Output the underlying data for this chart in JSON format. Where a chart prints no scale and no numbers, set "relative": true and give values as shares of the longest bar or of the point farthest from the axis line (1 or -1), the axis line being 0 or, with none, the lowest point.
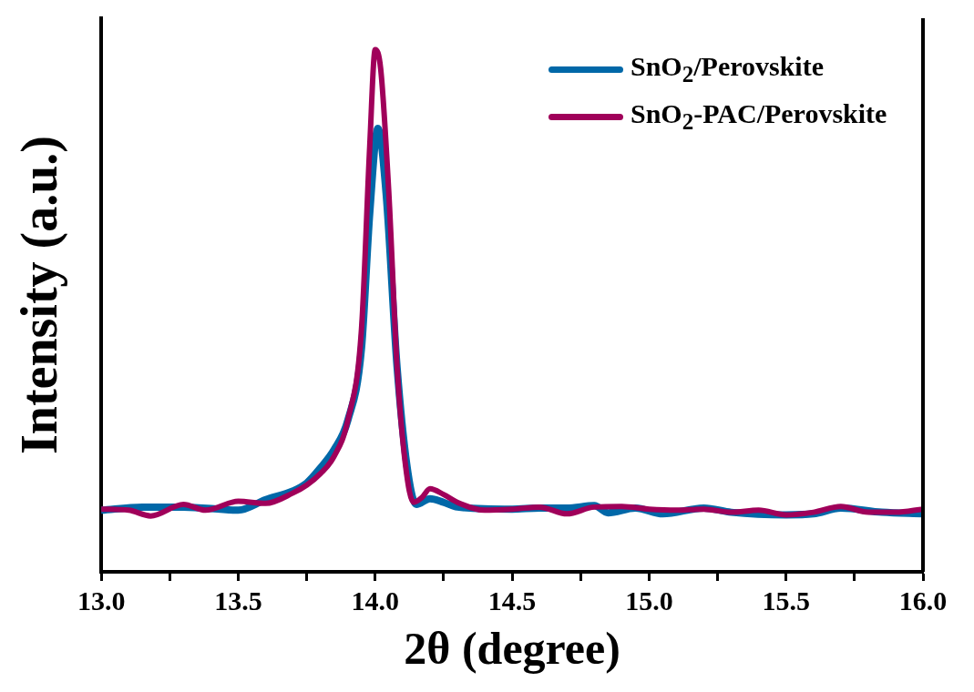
{
  "chart_data": {
    "type": "line",
    "relative": true,
    "xlabel": "2θ (degree)",
    "ylabel": "Intensity (a.u.)",
    "xlim": [
      13,
      16
    ],
    "xticks": [
      {
        "value": 13,
        "label": "13.0"
      },
      {
        "value": 13.25,
        "label": null
      },
      {
        "value": 13.5,
        "label": "13.5"
      },
      {
        "value": 13.75,
        "label": null
      },
      {
        "value": 14,
        "label": "14.0"
      },
      {
        "value": 14.25,
        "label": null
      },
      {
        "value": 14.5,
        "label": "14.5"
      },
      {
        "value": 14.75,
        "label": null
      },
      {
        "value": 15,
        "label": "15.0"
      },
      {
        "value": 15.25,
        "label": null
      },
      {
        "value": 15.5,
        "label": "15.5"
      },
      {
        "value": 15.75,
        "label": null
      },
      {
        "value": 16,
        "label": "16.0"
      }
    ],
    "tick_labels": "x",
    "grid": false,
    "legend": "top right",
    "marker": "none",
    "line_style": "solid",
    "series": [
      {
        "name": "SnO$_{2}$/Perovskite",
        "color": "#0068a8",
        "x": [
          13.0,
          13.15,
          13.3,
          13.5,
          13.6,
          13.7,
          13.75,
          13.8,
          13.85,
          13.9,
          13.95,
          13.98,
          14.01,
          14.04,
          14.08,
          14.12,
          14.15,
          14.2,
          14.25,
          14.3,
          14.5,
          14.6,
          14.7,
          14.8,
          14.85,
          14.95,
          15.05,
          15.2,
          15.3,
          15.5,
          15.6,
          15.7,
          15.85,
          16.0
        ],
        "values": [
          0.118,
          0.124,
          0.124,
          0.118,
          0.138,
          0.155,
          0.17,
          0.199,
          0.234,
          0.29,
          0.428,
          0.686,
          0.849,
          0.723,
          0.391,
          0.188,
          0.129,
          0.14,
          0.133,
          0.124,
          0.12,
          0.122,
          0.122,
          0.127,
          0.113,
          0.122,
          0.111,
          0.122,
          0.114,
          0.109,
          0.111,
          0.122,
          0.114,
          0.111
        ]
      },
      {
        "name": "SnO$_{2}$-PAC/Perovskite",
        "color": "#a0005a",
        "x": [
          13.0,
          13.1,
          13.18,
          13.3,
          13.38,
          13.5,
          13.6,
          13.7,
          13.75,
          13.8,
          13.85,
          13.9,
          13.95,
          13.98,
          14.0,
          14.02,
          14.05,
          14.08,
          14.11,
          14.14,
          14.17,
          14.2,
          14.25,
          14.3,
          14.4,
          14.5,
          14.6,
          14.7,
          14.8,
          14.9,
          15.0,
          15.1,
          15.2,
          15.3,
          15.4,
          15.5,
          15.6,
          15.7,
          15.8,
          15.9,
          16.0
        ],
        "values": [
          0.12,
          0.118,
          0.107,
          0.129,
          0.118,
          0.135,
          0.131,
          0.151,
          0.166,
          0.188,
          0.221,
          0.29,
          0.465,
          0.815,
          1,
          0.963,
          0.723,
          0.391,
          0.207,
          0.133,
          0.142,
          0.159,
          0.148,
          0.133,
          0.118,
          0.12,
          0.124,
          0.111,
          0.124,
          0.125,
          0.12,
          0.118,
          0.12,
          0.114,
          0.118,
          0.109,
          0.114,
          0.125,
          0.114,
          0.114,
          0.12
        ]
      }
    ]
  }
}
